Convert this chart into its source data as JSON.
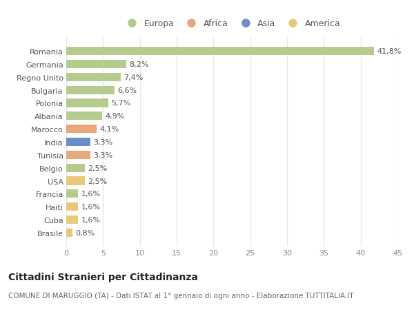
{
  "countries": [
    "Brasile",
    "Cuba",
    "Haiti",
    "Francia",
    "USA",
    "Belgio",
    "Tunisia",
    "India",
    "Marocco",
    "Albania",
    "Polonia",
    "Bulgaria",
    "Regno Unito",
    "Germania",
    "Romania"
  ],
  "values": [
    0.8,
    1.6,
    1.6,
    1.6,
    2.5,
    2.5,
    3.3,
    3.3,
    4.1,
    4.9,
    5.7,
    6.6,
    7.4,
    8.2,
    41.8
  ],
  "labels": [
    "0,8%",
    "1,6%",
    "1,6%",
    "1,6%",
    "2,5%",
    "2,5%",
    "3,3%",
    "3,3%",
    "4,1%",
    "4,9%",
    "5,7%",
    "6,6%",
    "7,4%",
    "8,2%",
    "41,8%"
  ],
  "colors": [
    "#e8c87a",
    "#e8c87a",
    "#e8c87a",
    "#b5cc8e",
    "#e8c87a",
    "#b5cc8e",
    "#e8a87a",
    "#6b8ec8",
    "#e8a87a",
    "#b5cc8e",
    "#b5cc8e",
    "#b5cc8e",
    "#b5cc8e",
    "#b5cc8e",
    "#b5cc8e"
  ],
  "legend_labels": [
    "Europa",
    "Africa",
    "Asia",
    "America"
  ],
  "legend_colors": [
    "#b5cc8e",
    "#e8a87a",
    "#6b8ec8",
    "#e8c87a"
  ],
  "title": "Cittadini Stranieri per Cittadinanza",
  "subtitle": "COMUNE DI MARUGGIO (TA) - Dati ISTAT al 1° gennaio di ogni anno - Elaborazione TUTTITALIA.IT",
  "xlim": [
    0,
    45
  ],
  "xticks": [
    0,
    5,
    10,
    15,
    20,
    25,
    30,
    35,
    40,
    45
  ],
  "bg_color": "#ffffff",
  "grid_color": "#e8e8e8",
  "bar_height": 0.65,
  "label_fontsize": 8,
  "tick_fontsize": 8,
  "legend_fontsize": 9,
  "title_fontsize": 10,
  "subtitle_fontsize": 7.5
}
